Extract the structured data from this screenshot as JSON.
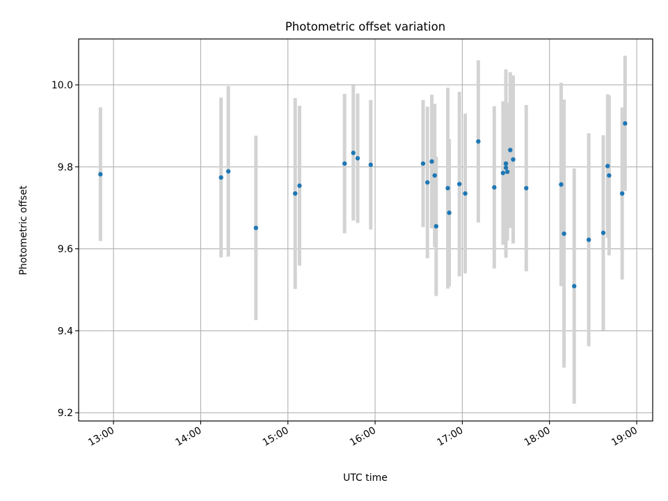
{
  "chart_data": {
    "type": "scatter",
    "title": "Photometric offset variation",
    "xlabel": "UTC time",
    "ylabel": "Photometric offset",
    "xlim": [
      "12:36",
      "19:11"
    ],
    "ylim": [
      9.18,
      10.112
    ],
    "x_ticks": [
      "13:00",
      "14:00",
      "15:00",
      "16:00",
      "17:00",
      "18:00",
      "19:00"
    ],
    "y_ticks": [
      "9.2",
      "9.4",
      "9.6",
      "9.8",
      "10.0"
    ],
    "y_tick_values": [
      9.2,
      9.4,
      9.6,
      9.8,
      10.0
    ],
    "grid": true,
    "colors": {
      "point": "#1f77b4",
      "errorbar": "#d3d3d3",
      "grid": "#b0b0b0",
      "axis": "#000000"
    },
    "series": [
      {
        "points": [
          {
            "x": "12:51",
            "y": 9.782,
            "yerr": 0.163
          },
          {
            "x": "14:14",
            "y": 9.774,
            "yerr": 0.195
          },
          {
            "x": "14:19",
            "y": 9.789,
            "yerr": 0.208
          },
          {
            "x": "14:38",
            "y": 9.651,
            "yerr": 0.225
          },
          {
            "x": "15:05",
            "y": 9.735,
            "yerr": 0.233
          },
          {
            "x": "15:08",
            "y": 9.754,
            "yerr": 0.195
          },
          {
            "x": "15:39",
            "y": 9.808,
            "yerr": 0.17
          },
          {
            "x": "15:45",
            "y": 9.834,
            "yerr": 0.165
          },
          {
            "x": "15:48",
            "y": 9.821,
            "yerr": 0.158
          },
          {
            "x": "15:57",
            "y": 9.805,
            "yerr": 0.158
          },
          {
            "x": "16:33",
            "y": 9.808,
            "yerr": 0.155
          },
          {
            "x": "16:36",
            "y": 9.762,
            "yerr": 0.185
          },
          {
            "x": "16:39",
            "y": 9.813,
            "yerr": 0.163
          },
          {
            "x": "16:41",
            "y": 9.779,
            "yerr": 0.175
          },
          {
            "x": "16:42",
            "y": 9.655,
            "yerr": 0.17
          },
          {
            "x": "16:50",
            "y": 9.748,
            "yerr": 0.245
          },
          {
            "x": "16:51",
            "y": 9.688,
            "yerr": 0.18
          },
          {
            "x": "16:58",
            "y": 9.758,
            "yerr": 0.225
          },
          {
            "x": "17:02",
            "y": 9.735,
            "yerr": 0.195
          },
          {
            "x": "17:11",
            "y": 9.862,
            "yerr": 0.198
          },
          {
            "x": "17:22",
            "y": 9.75,
            "yerr": 0.198
          },
          {
            "x": "17:28",
            "y": 9.785,
            "yerr": 0.175
          },
          {
            "x": "17:30",
            "y": 9.808,
            "yerr": 0.23
          },
          {
            "x": "17:30",
            "y": 9.798,
            "yerr": 0.158
          },
          {
            "x": "17:31",
            "y": 9.788,
            "yerr": 0.168
          },
          {
            "x": "17:33",
            "y": 9.841,
            "yerr": 0.19
          },
          {
            "x": "17:35",
            "y": 9.818,
            "yerr": 0.205
          },
          {
            "x": "17:44",
            "y": 9.748,
            "yerr": 0.203
          },
          {
            "x": "18:08",
            "y": 9.757,
            "yerr": 0.248
          },
          {
            "x": "18:10",
            "y": 9.637,
            "yerr": 0.327
          },
          {
            "x": "18:17",
            "y": 9.509,
            "yerr": 0.287
          },
          {
            "x": "18:27",
            "y": 9.622,
            "yerr": 0.26
          },
          {
            "x": "18:37",
            "y": 9.639,
            "yerr": 0.238
          },
          {
            "x": "18:40",
            "y": 9.802,
            "yerr": 0.175
          },
          {
            "x": "18:41",
            "y": 9.779,
            "yerr": 0.195
          },
          {
            "x": "18:50",
            "y": 9.735,
            "yerr": 0.21
          },
          {
            "x": "18:52",
            "y": 9.906,
            "yerr": 0.165
          }
        ]
      }
    ]
  }
}
